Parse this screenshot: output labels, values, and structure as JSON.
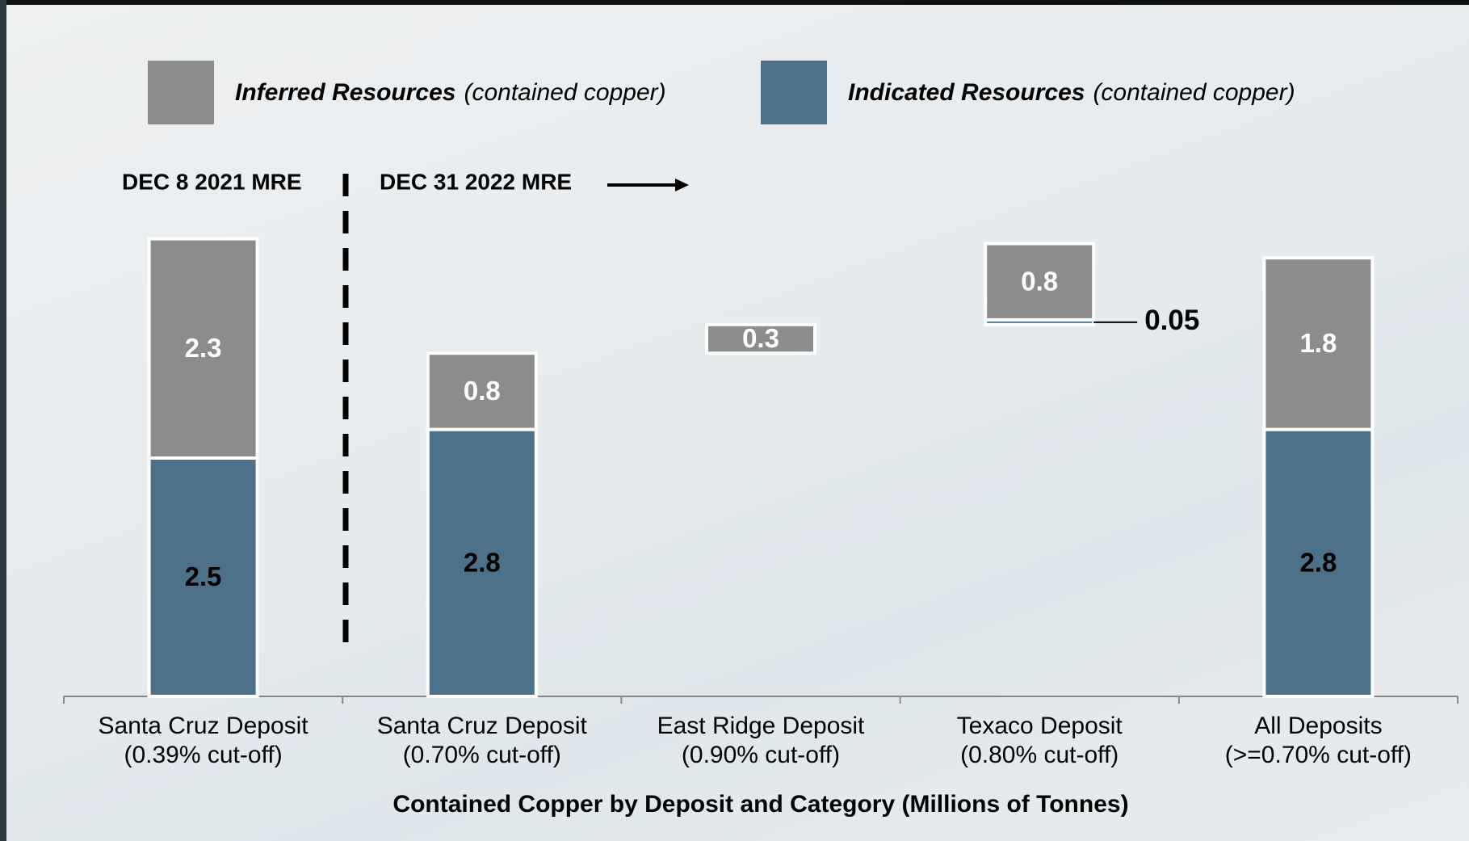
{
  "chart_data": {
    "type": "waterfall",
    "x_label": "Contained Copper by Deposit and Category (Millions of Tonnes)",
    "annotations": [
      "DEC 8 2021 MRE",
      "DEC 31 2022 MRE"
    ],
    "categories": [
      [
        "Santa Cruz Deposit",
        "(0.39% cut-off)"
      ],
      [
        "Santa Cruz Deposit",
        "(0.70% cut-off)"
      ],
      [
        "East Ridge Deposit",
        "(0.90% cut-off)"
      ],
      [
        "Texaco Deposit",
        "(0.80% cut-off)"
      ],
      [
        "All Deposits",
        "(>=0.70% cut-off)"
      ]
    ],
    "series": [
      {
        "name": "Indicated Resources",
        "note": "(contained copper)",
        "color": "#4d7189",
        "values": [
          2.5,
          2.8,
          null,
          0.05,
          2.8
        ]
      },
      {
        "name": "Inferred Resources",
        "note": "(contained copper)",
        "color": "#8c8c8c",
        "values": [
          2.3,
          0.8,
          0.3,
          0.8,
          1.8
        ]
      }
    ]
  }
}
